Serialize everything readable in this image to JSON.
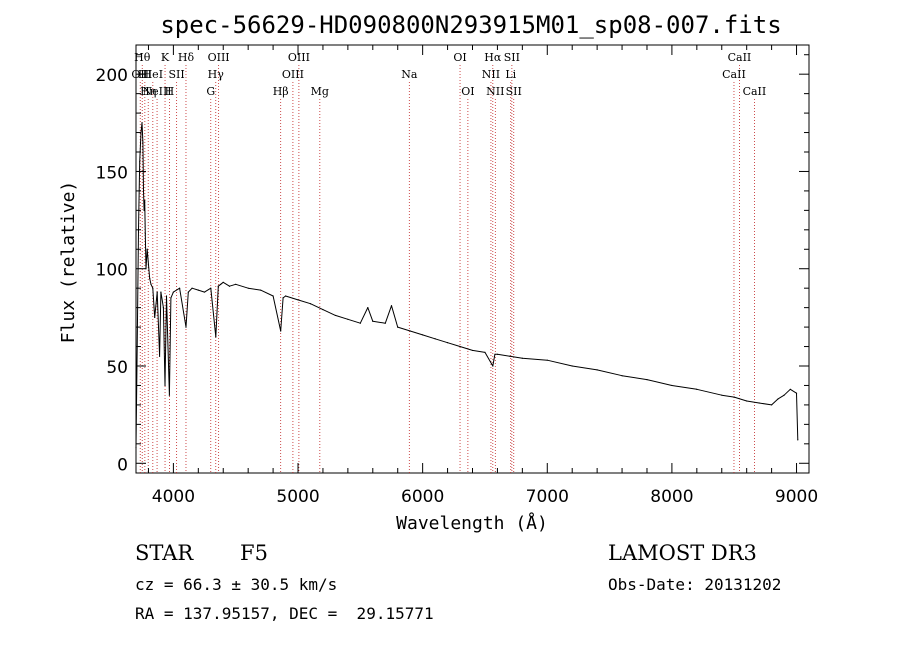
{
  "chart_data": {
    "type": "line",
    "title": "spec-56629-HD090800N293915M01_sp08-007.fits",
    "xlabel": "Wavelength (Å)",
    "ylabel": "Flux (relative)",
    "xlim": [
      3700,
      9100
    ],
    "ylim": [
      -5,
      215
    ],
    "xticks": [
      4000,
      5000,
      6000,
      7000,
      8000,
      9000
    ],
    "yticks": [
      0,
      50,
      100,
      150,
      200
    ],
    "xtick_labels": [
      "4000",
      "5000",
      "6000",
      "7000",
      "8000",
      "9000"
    ],
    "ytick_labels": [
      "0",
      "50",
      "100",
      "150",
      "200"
    ],
    "grid": false,
    "series": [
      {
        "name": "flux",
        "x": [
          3700,
          3710,
          3720,
          3730,
          3740,
          3748,
          3755,
          3760,
          3765,
          3770,
          3775,
          3780,
          3790,
          3800,
          3810,
          3820,
          3835,
          3850,
          3870,
          3889,
          3900,
          3920,
          3933,
          3945,
          3968,
          3980,
          4000,
          4050,
          4101,
          4120,
          4150,
          4200,
          4250,
          4300,
          4340,
          4360,
          4380,
          4400,
          4450,
          4500,
          4600,
          4700,
          4800,
          4861,
          4880,
          4900,
          5000,
          5100,
          5200,
          5300,
          5400,
          5500,
          5560,
          5600,
          5700,
          5750,
          5800,
          5900,
          6000,
          6100,
          6200,
          6300,
          6400,
          6500,
          6563,
          6580,
          6600,
          6700,
          6800,
          7000,
          7200,
          7400,
          7600,
          7800,
          8000,
          8200,
          8400,
          8500,
          8600,
          8700,
          8800,
          8850,
          8900,
          8950,
          9000,
          9010
        ],
        "y": [
          8,
          60,
          120,
          155,
          170,
          175,
          165,
          140,
          130,
          135,
          118,
          100,
          110,
          102,
          95,
          92,
          90,
          75,
          88,
          55,
          88,
          80,
          40,
          86,
          35,
          85,
          88,
          90,
          70,
          88,
          90,
          89,
          88,
          90,
          65,
          91,
          92,
          93,
          91,
          92,
          90,
          89,
          86,
          68,
          85,
          86,
          84,
          82,
          79,
          76,
          74,
          72,
          80,
          73,
          72,
          81,
          70,
          68,
          66,
          64,
          62,
          60,
          58,
          57,
          50,
          56,
          56,
          55,
          54,
          53,
          50,
          48,
          45,
          43,
          40,
          38,
          35,
          34,
          32,
          31,
          30,
          33,
          35,
          38,
          36,
          12
        ]
      }
    ],
    "line_labels": [
      {
        "wl": 3734,
        "label": "OII",
        "row": 2
      },
      {
        "wl": 3750,
        "label": "Hθ",
        "row": 1
      },
      {
        "wl": 3771,
        "label": "HI",
        "row": 2
      },
      {
        "wl": 3798,
        "label": "Hη",
        "row": 3
      },
      {
        "wl": 3835,
        "label": "HeI",
        "row": 2
      },
      {
        "wl": 3869,
        "label": "NeIII",
        "row": 3
      },
      {
        "wl": 3933,
        "label": "K",
        "row": 1
      },
      {
        "wl": 3968,
        "label": "H",
        "row": 3
      },
      {
        "wl": 4026,
        "label": "SII",
        "row": 2
      },
      {
        "wl": 4101,
        "label": "Hδ",
        "row": 1
      },
      {
        "wl": 4300,
        "label": "G",
        "row": 3
      },
      {
        "wl": 4340,
        "label": "Hγ",
        "row": 2
      },
      {
        "wl": 4363,
        "label": "OIII",
        "row": 1
      },
      {
        "wl": 4861,
        "label": "Hβ",
        "row": 3
      },
      {
        "wl": 4959,
        "label": "OIII",
        "row": 2
      },
      {
        "wl": 5007,
        "label": "OIII",
        "row": 1
      },
      {
        "wl": 5175,
        "label": "Mg",
        "row": 3
      },
      {
        "wl": 5893,
        "label": "Na",
        "row": 2
      },
      {
        "wl": 6300,
        "label": "OI",
        "row": 1
      },
      {
        "wl": 6363,
        "label": "OI",
        "row": 3
      },
      {
        "wl": 6548,
        "label": "NII",
        "row": 2
      },
      {
        "wl": 6563,
        "label": "Hα",
        "row": 1
      },
      {
        "wl": 6583,
        "label": "NII",
        "row": 3
      },
      {
        "wl": 6707,
        "label": "Li",
        "row": 2
      },
      {
        "wl": 6716,
        "label": "SII",
        "row": 1
      },
      {
        "wl": 6731,
        "label": "SII",
        "row": 3
      },
      {
        "wl": 8498,
        "label": "CaII",
        "row": 2
      },
      {
        "wl": 8542,
        "label": "CaII",
        "row": 1
      },
      {
        "wl": 8662,
        "label": "CaII",
        "row": 3
      }
    ]
  },
  "info": {
    "class": "STAR",
    "subclass": "F5",
    "survey": "LAMOST DR3",
    "redshift": "cz = 66.3 ± 30.5 km/s",
    "obsdate": "Obs-Date: 20131202",
    "coords": "RA = 137.95157, DEC =  29.15771"
  }
}
